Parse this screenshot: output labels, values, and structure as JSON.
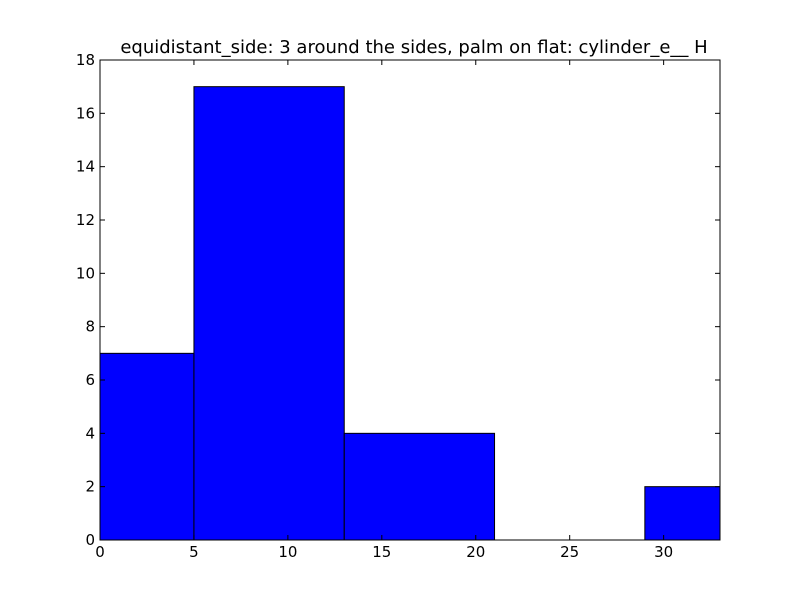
{
  "chart_data": {
    "type": "bar",
    "subtype": "histogram",
    "title": "equidistant_side: 3 around the sides, palm on flat: cylinder_e__ H",
    "xlabel": "",
    "ylabel": "",
    "xlim": [
      0,
      33
    ],
    "ylim": [
      0,
      18
    ],
    "x_ticks": [
      0,
      5,
      10,
      15,
      20,
      25,
      30
    ],
    "y_ticks": [
      0,
      2,
      4,
      6,
      8,
      10,
      12,
      14,
      16,
      18
    ],
    "bins": [
      {
        "start": 0,
        "end": 5,
        "count": 7
      },
      {
        "start": 5,
        "end": 13,
        "count": 17
      },
      {
        "start": 13,
        "end": 21,
        "count": 4
      },
      {
        "start": 21,
        "end": 29,
        "count": 0
      },
      {
        "start": 29,
        "end": 33,
        "count": 2
      }
    ],
    "bar_color": "#0000ff",
    "edge_color": "#000000",
    "grid": false
  }
}
